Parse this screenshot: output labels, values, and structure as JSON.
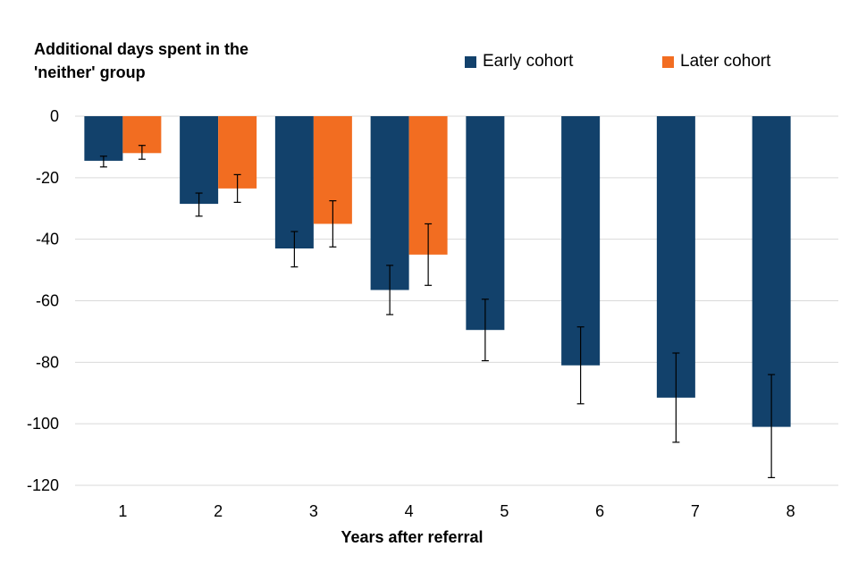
{
  "chart_data": {
    "type": "bar",
    "ylabel": "Additional days spent in the 'neither' group",
    "xlabel": "Years after referral",
    "categories": [
      "1",
      "2",
      "3",
      "4",
      "5",
      "6",
      "7",
      "8"
    ],
    "series": [
      {
        "name": "Early cohort",
        "color": "#12416b",
        "values": [
          -14.5,
          -28.5,
          -43,
          -56.5,
          -69.5,
          -81,
          -91.5,
          -101
        ],
        "error_low": [
          -16.5,
          -32.5,
          -49,
          -64.5,
          -79.5,
          -93.5,
          -106,
          -117.5
        ],
        "error_high": [
          -13,
          -25,
          -37.5,
          -48.5,
          -59.5,
          -68.5,
          -77,
          -84
        ]
      },
      {
        "name": "Later cohort",
        "color": "#f26d21",
        "values": [
          -12,
          -23.5,
          -35,
          -45,
          null,
          null,
          null,
          null
        ],
        "error_low": [
          -14,
          -28,
          -42.5,
          -55,
          null,
          null,
          null,
          null
        ],
        "error_high": [
          -9.5,
          -19,
          -27.5,
          -35,
          null,
          null,
          null,
          null
        ]
      }
    ],
    "ylim": [
      -120,
      0
    ],
    "yticks": [
      0,
      -20,
      -40,
      -60,
      -80,
      -100,
      -120
    ],
    "grid": true,
    "legend": "top-right"
  }
}
